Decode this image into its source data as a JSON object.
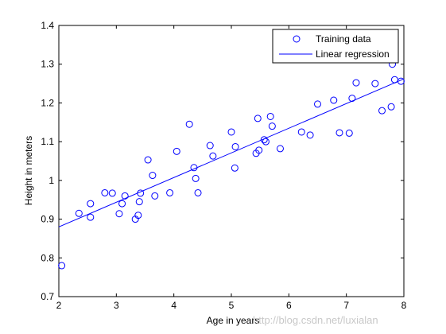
{
  "chart_data": {
    "type": "scatter",
    "xlabel": "Age in years",
    "ylabel": "Height in meters",
    "xlim": [
      2,
      8
    ],
    "ylim": [
      0.7,
      1.4
    ],
    "xticks": [
      "2",
      "3",
      "4",
      "5",
      "6",
      "7",
      "8"
    ],
    "yticks": [
      "0.7",
      "0.8",
      "0.9",
      "1",
      "1.1",
      "1.2",
      "1.3",
      "1.4"
    ],
    "grid": false,
    "legend_position": "top-right",
    "series": [
      {
        "name": "Training data",
        "kind": "scatter",
        "marker": "open-circle",
        "color": "#0000ff",
        "points": [
          [
            2.05,
            0.78
          ],
          [
            2.35,
            0.915
          ],
          [
            2.55,
            0.905
          ],
          [
            2.55,
            0.94
          ],
          [
            2.8,
            0.968
          ],
          [
            2.93,
            0.967
          ],
          [
            3.05,
            0.914
          ],
          [
            3.1,
            0.94
          ],
          [
            3.15,
            0.96
          ],
          [
            3.33,
            0.9
          ],
          [
            3.38,
            0.91
          ],
          [
            3.4,
            0.945
          ],
          [
            3.42,
            0.967
          ],
          [
            3.55,
            1.053
          ],
          [
            3.63,
            1.013
          ],
          [
            3.67,
            0.96
          ],
          [
            3.93,
            0.968
          ],
          [
            4.05,
            1.075
          ],
          [
            4.27,
            1.145
          ],
          [
            4.35,
            1.033
          ],
          [
            4.38,
            1.005
          ],
          [
            4.42,
            0.968
          ],
          [
            4.63,
            1.09
          ],
          [
            4.68,
            1.063
          ],
          [
            5.0,
            1.125
          ],
          [
            5.06,
            1.032
          ],
          [
            5.07,
            1.087
          ],
          [
            5.43,
            1.07
          ],
          [
            5.46,
            1.16
          ],
          [
            5.48,
            1.078
          ],
          [
            5.57,
            1.105
          ],
          [
            5.6,
            1.1
          ],
          [
            5.68,
            1.165
          ],
          [
            5.71,
            1.14
          ],
          [
            5.85,
            1.082
          ],
          [
            6.22,
            1.125
          ],
          [
            6.37,
            1.117
          ],
          [
            6.5,
            1.197
          ],
          [
            6.78,
            1.207
          ],
          [
            6.88,
            1.123
          ],
          [
            7.05,
            1.122
          ],
          [
            7.1,
            1.212
          ],
          [
            7.17,
            1.252
          ],
          [
            7.5,
            1.25
          ],
          [
            7.62,
            1.18
          ],
          [
            7.78,
            1.19
          ],
          [
            7.8,
            1.3
          ],
          [
            7.84,
            1.26
          ],
          [
            7.95,
            1.256
          ]
        ]
      },
      {
        "name": "Linear regression",
        "kind": "line",
        "color": "#0000ff",
        "points": [
          [
            2.0,
            0.88
          ],
          [
            8.0,
            1.262
          ]
        ]
      }
    ]
  },
  "watermark": "http://blog.csdn.net/luxialan"
}
